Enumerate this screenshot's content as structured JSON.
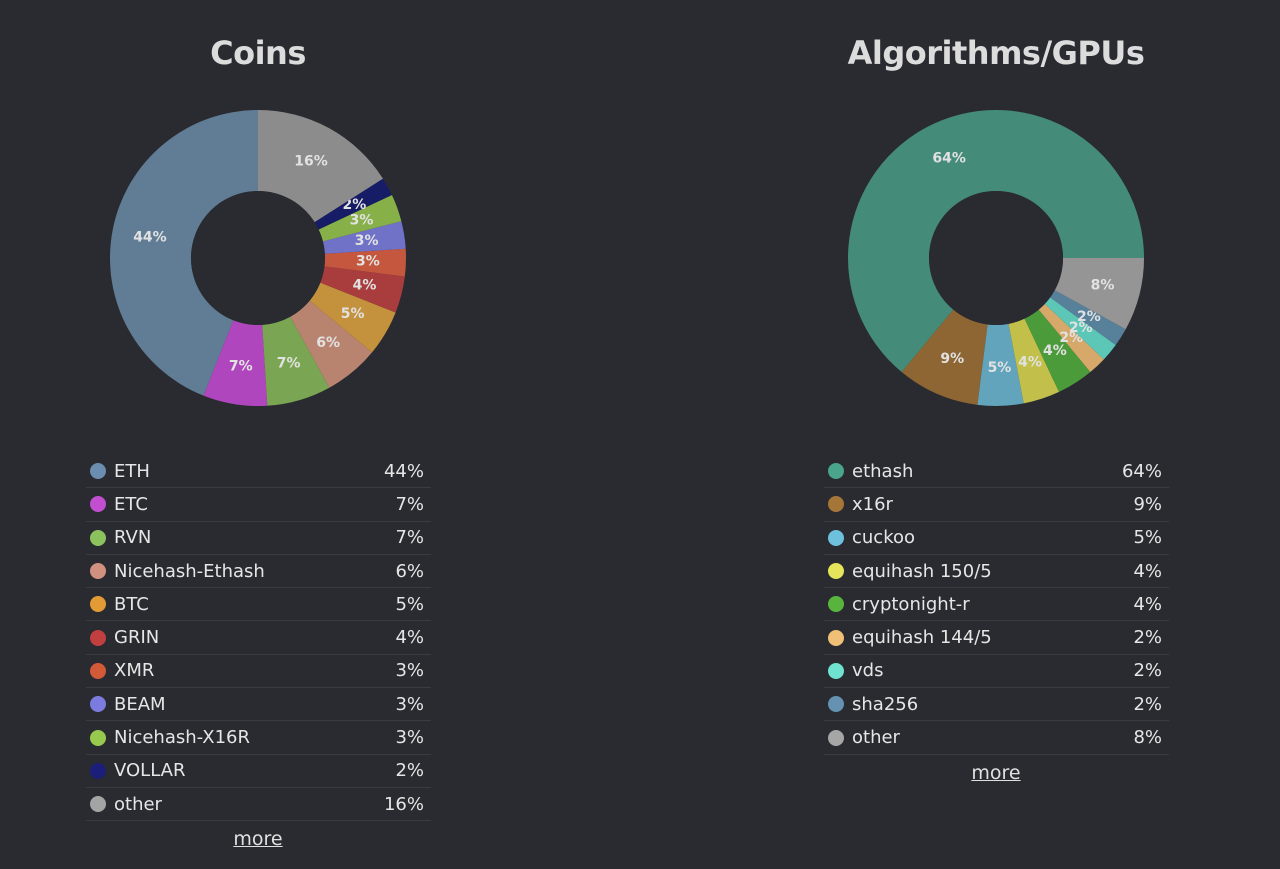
{
  "chart_data": [
    {
      "type": "pie",
      "title": "Coins",
      "categories": [
        "ETH",
        "ETC",
        "RVN",
        "Nicehash-Ethash",
        "BTC",
        "GRIN",
        "XMR",
        "BEAM",
        "Nicehash-X16R",
        "VOLLAR",
        "other"
      ],
      "values": [
        44,
        7,
        7,
        6,
        5,
        4,
        3,
        3,
        3,
        2,
        16
      ],
      "value_labels": [
        "44%",
        "7%",
        "7%",
        "6%",
        "5%",
        "4%",
        "3%",
        "3%",
        "3%",
        "2%",
        "16%"
      ],
      "slice_colors": [
        "#607d95",
        "#b046bd",
        "#7aa553",
        "#b88470",
        "#c4913c",
        "#a93c3c",
        "#c4573e",
        "#6f72c7",
        "#87b049",
        "#161c66",
        "#8c8c8c"
      ],
      "legend_colors": [
        "#6a8db0",
        "#c24fd0",
        "#8cc25e",
        "#d19181",
        "#e39b35",
        "#c23f3f",
        "#d35a39",
        "#7c7be0",
        "#97c94e",
        "#1b1f7a",
        "#a4a4a4"
      ],
      "legend": "below",
      "start_angle_deg": 90,
      "direction": "counter-clockwise",
      "more_label": "more"
    },
    {
      "type": "pie",
      "title": "Algorithms/GPUs",
      "categories": [
        "ethash",
        "x16r",
        "cuckoo",
        "equihash 150/5",
        "cryptonight-r",
        "equihash 144/5",
        "vds",
        "sha256",
        "other"
      ],
      "values": [
        64,
        9,
        5,
        4,
        4,
        2,
        2,
        2,
        8
      ],
      "value_labels": [
        "64%",
        "9%",
        "5%",
        "4%",
        "4%",
        "2%",
        "2%",
        "2%",
        "8%"
      ],
      "slice_colors": [
        "#448c79",
        "#8e6634",
        "#61a4bb",
        "#c2c04a",
        "#4b9b3b",
        "#d6a86a",
        "#5cc7b6",
        "#57809a",
        "#959595"
      ],
      "legend_colors": [
        "#4aa58c",
        "#a67638",
        "#6ec1dc",
        "#e5e45a",
        "#58b43c",
        "#f0c077",
        "#6fe3cf",
        "#6492b0",
        "#a6a6a6"
      ],
      "legend": "below",
      "start_angle_deg": 0,
      "direction": "counter-clockwise",
      "more_label": "more"
    }
  ]
}
